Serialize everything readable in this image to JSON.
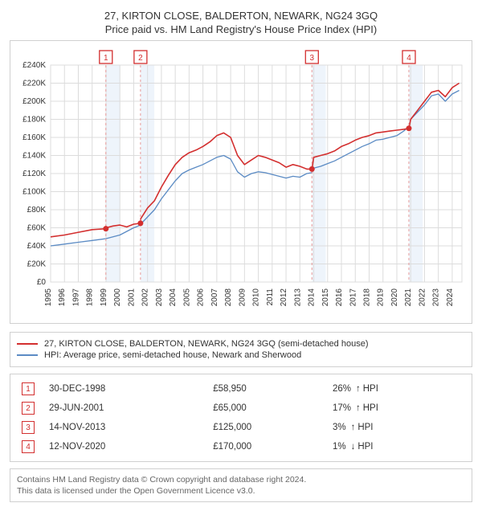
{
  "title_line1": "27, KIRTON CLOSE, BALDERTON, NEWARK, NG24 3GQ",
  "title_line2": "Price paid vs. HM Land Registry's House Price Index (HPI)",
  "chart": {
    "type": "line",
    "background_color": "#ffffff",
    "grid_color": "#dcdcdc",
    "border_color": "#d0d0d0",
    "x": {
      "years": [
        1995,
        1996,
        1997,
        1998,
        1999,
        2000,
        2001,
        2002,
        2003,
        2004,
        2005,
        2006,
        2007,
        2008,
        2009,
        2010,
        2011,
        2012,
        2013,
        2014,
        2015,
        2016,
        2017,
        2018,
        2019,
        2020,
        2021,
        2022,
        2023,
        2024
      ],
      "label_fontsize": 10,
      "label_color": "#333333"
    },
    "y": {
      "min": 0,
      "max": 240000,
      "step": 20000,
      "tick_labels": [
        "£0",
        "£20K",
        "£40K",
        "£60K",
        "£80K",
        "£100K",
        "£120K",
        "£140K",
        "£160K",
        "£180K",
        "£200K",
        "£220K",
        "£240K"
      ],
      "label_fontsize": 10,
      "label_color": "#333333"
    },
    "series": [
      {
        "name": "property",
        "label": "27, KIRTON CLOSE, BALDERTON, NEWARK, NG24 3GQ (semi-detached house)",
        "color": "#d32f2f",
        "line_width": 1.6,
        "data": [
          [
            1995,
            50000
          ],
          [
            1996,
            52000
          ],
          [
            1997,
            55000
          ],
          [
            1998,
            58000
          ],
          [
            1998.99,
            58950
          ],
          [
            1999,
            60000
          ],
          [
            1999.5,
            62000
          ],
          [
            2000,
            63000
          ],
          [
            2000.5,
            61000
          ],
          [
            2001,
            64000
          ],
          [
            2001.49,
            65000
          ],
          [
            2001.5,
            70000
          ],
          [
            2002,
            82000
          ],
          [
            2002.5,
            90000
          ],
          [
            2003,
            105000
          ],
          [
            2003.5,
            118000
          ],
          [
            2004,
            130000
          ],
          [
            2004.5,
            138000
          ],
          [
            2005,
            143000
          ],
          [
            2005.5,
            146000
          ],
          [
            2006,
            150000
          ],
          [
            2006.5,
            155000
          ],
          [
            2007,
            162000
          ],
          [
            2007.5,
            165000
          ],
          [
            2008,
            160000
          ],
          [
            2008.5,
            140000
          ],
          [
            2009,
            130000
          ],
          [
            2009.5,
            135000
          ],
          [
            2010,
            140000
          ],
          [
            2010.5,
            138000
          ],
          [
            2011,
            135000
          ],
          [
            2011.5,
            132000
          ],
          [
            2012,
            127000
          ],
          [
            2012.5,
            130000
          ],
          [
            2013,
            128000
          ],
          [
            2013.5,
            125000
          ],
          [
            2013.87,
            125000
          ],
          [
            2014,
            138000
          ],
          [
            2014.5,
            140000
          ],
          [
            2015,
            142000
          ],
          [
            2015.5,
            145000
          ],
          [
            2016,
            150000
          ],
          [
            2016.5,
            153000
          ],
          [
            2017,
            157000
          ],
          [
            2017.5,
            160000
          ],
          [
            2018,
            162000
          ],
          [
            2018.5,
            165000
          ],
          [
            2019,
            166000
          ],
          [
            2019.5,
            167000
          ],
          [
            2020,
            168000
          ],
          [
            2020.5,
            169000
          ],
          [
            2020.87,
            170000
          ],
          [
            2021,
            180000
          ],
          [
            2021.5,
            190000
          ],
          [
            2022,
            200000
          ],
          [
            2022.5,
            210000
          ],
          [
            2023,
            212000
          ],
          [
            2023.5,
            205000
          ],
          [
            2024,
            215000
          ],
          [
            2024.5,
            220000
          ]
        ]
      },
      {
        "name": "hpi",
        "label": "HPI: Average price, semi-detached house, Newark and Sherwood",
        "color": "#5b8bc4",
        "line_width": 1.3,
        "data": [
          [
            1995,
            40000
          ],
          [
            1996,
            42000
          ],
          [
            1997,
            44000
          ],
          [
            1998,
            46000
          ],
          [
            1999,
            48000
          ],
          [
            2000,
            52000
          ],
          [
            2000.5,
            56000
          ],
          [
            2001,
            60000
          ],
          [
            2001.49,
            63000
          ],
          [
            2001.5,
            64000
          ],
          [
            2002,
            72000
          ],
          [
            2002.5,
            80000
          ],
          [
            2003,
            92000
          ],
          [
            2003.5,
            102000
          ],
          [
            2004,
            112000
          ],
          [
            2004.5,
            120000
          ],
          [
            2005,
            124000
          ],
          [
            2005.5,
            127000
          ],
          [
            2006,
            130000
          ],
          [
            2006.5,
            134000
          ],
          [
            2007,
            138000
          ],
          [
            2007.5,
            140000
          ],
          [
            2008,
            136000
          ],
          [
            2008.5,
            122000
          ],
          [
            2009,
            116000
          ],
          [
            2009.5,
            120000
          ],
          [
            2010,
            122000
          ],
          [
            2010.5,
            121000
          ],
          [
            2011,
            119000
          ],
          [
            2011.5,
            117000
          ],
          [
            2012,
            115000
          ],
          [
            2012.5,
            117000
          ],
          [
            2013,
            116000
          ],
          [
            2013.5,
            120000
          ],
          [
            2013.87,
            121000
          ],
          [
            2014,
            126000
          ],
          [
            2014.5,
            128000
          ],
          [
            2015,
            131000
          ],
          [
            2015.5,
            134000
          ],
          [
            2016,
            138000
          ],
          [
            2016.5,
            142000
          ],
          [
            2017,
            146000
          ],
          [
            2017.5,
            150000
          ],
          [
            2018,
            153000
          ],
          [
            2018.5,
            157000
          ],
          [
            2019,
            158000
          ],
          [
            2019.5,
            160000
          ],
          [
            2020,
            162000
          ],
          [
            2020.5,
            167000
          ],
          [
            2020.87,
            172000
          ],
          [
            2021,
            180000
          ],
          [
            2021.5,
            188000
          ],
          [
            2022,
            196000
          ],
          [
            2022.5,
            206000
          ],
          [
            2023,
            208000
          ],
          [
            2023.5,
            200000
          ],
          [
            2024,
            208000
          ],
          [
            2024.5,
            212000
          ]
        ]
      }
    ],
    "sale_markers": [
      {
        "n": 1,
        "x": 1998.99,
        "y": 58950,
        "band_start": 1998.99,
        "band_end": 1999.99
      },
      {
        "n": 2,
        "x": 2001.49,
        "y": 65000,
        "band_start": 2001.49,
        "band_end": 2002.49
      },
      {
        "n": 3,
        "x": 2013.87,
        "y": 125000,
        "band_start": 2013.87,
        "band_end": 2014.87
      },
      {
        "n": 4,
        "x": 2020.87,
        "y": 170000,
        "band_start": 2020.87,
        "band_end": 2021.87
      }
    ],
    "sale_dot_color": "#d32f2f",
    "sale_dot_radius": 3.5,
    "sale_line_color": "#e69999",
    "band_fill": "#eef4fb",
    "marker_box_border": "#d32f2f",
    "marker_box_bg": "#ffffff",
    "marker_box_text": "#d32f2f",
    "marker_box_fontsize": 10
  },
  "legend": {
    "series0": "27, KIRTON CLOSE, BALDERTON, NEWARK, NG24 3GQ (semi-detached house)",
    "series1": "HPI: Average price, semi-detached house, Newark and Sherwood"
  },
  "sales_table": {
    "rows": [
      {
        "n": "1",
        "date": "30-DEC-1998",
        "price": "£58,950",
        "pct": "26%",
        "dir": "↑",
        "suffix": "HPI"
      },
      {
        "n": "2",
        "date": "29-JUN-2001",
        "price": "£65,000",
        "pct": "17%",
        "dir": "↑",
        "suffix": "HPI"
      },
      {
        "n": "3",
        "date": "14-NOV-2013",
        "price": "£125,000",
        "pct": "3%",
        "dir": "↑",
        "suffix": "HPI"
      },
      {
        "n": "4",
        "date": "12-NOV-2020",
        "price": "£170,000",
        "pct": "1%",
        "dir": "↓",
        "suffix": "HPI"
      }
    ]
  },
  "footer": {
    "line1": "Contains HM Land Registry data © Crown copyright and database right 2024.",
    "line2": "This data is licensed under the Open Government Licence v3.0."
  }
}
